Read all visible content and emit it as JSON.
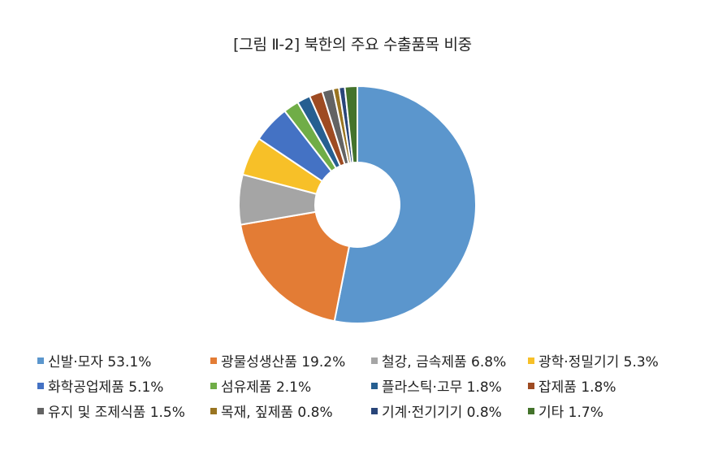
{
  "chart_data": {
    "type": "pie",
    "title": "[그림 Ⅱ-2] 북한의 주요 수출품목 비중",
    "donut": true,
    "legend_position": "bottom",
    "categories": [
      "신발·모자",
      "광물성생산품",
      "철강, 금속제품",
      "광학·정밀기기",
      "화학공업제품",
      "섬유제품",
      "플라스틱·고무",
      "잡제품",
      "유지 및 조제식품",
      "목재, 짚제품",
      "기계·전기기기",
      "기타"
    ],
    "values": [
      53.1,
      19.2,
      6.8,
      5.3,
      5.1,
      2.1,
      1.8,
      1.8,
      1.5,
      0.8,
      0.8,
      1.7
    ],
    "unit": "%",
    "colors": [
      "#5b96cd",
      "#e37c35",
      "#a5a5a5",
      "#f7c028",
      "#4472c4",
      "#70ad47",
      "#265f91",
      "#9e4b22",
      "#636363",
      "#997421",
      "#294579",
      "#44732b"
    ],
    "legend_labels": [
      "신발·모자 53.1%",
      "광물성생산품 19.2%",
      "철강, 금속제품 6.8%",
      "광학·정밀기기 5.3%",
      "화학공업제품 5.1%",
      "섬유제품 2.1%",
      "플라스틱·고무 1.8%",
      "잡제품 1.8%",
      "유지 및 조제식품 1.5%",
      "목재, 짚제품 0.8%",
      "기계·전기기기 0.8%",
      "기타 1.7%"
    ]
  }
}
